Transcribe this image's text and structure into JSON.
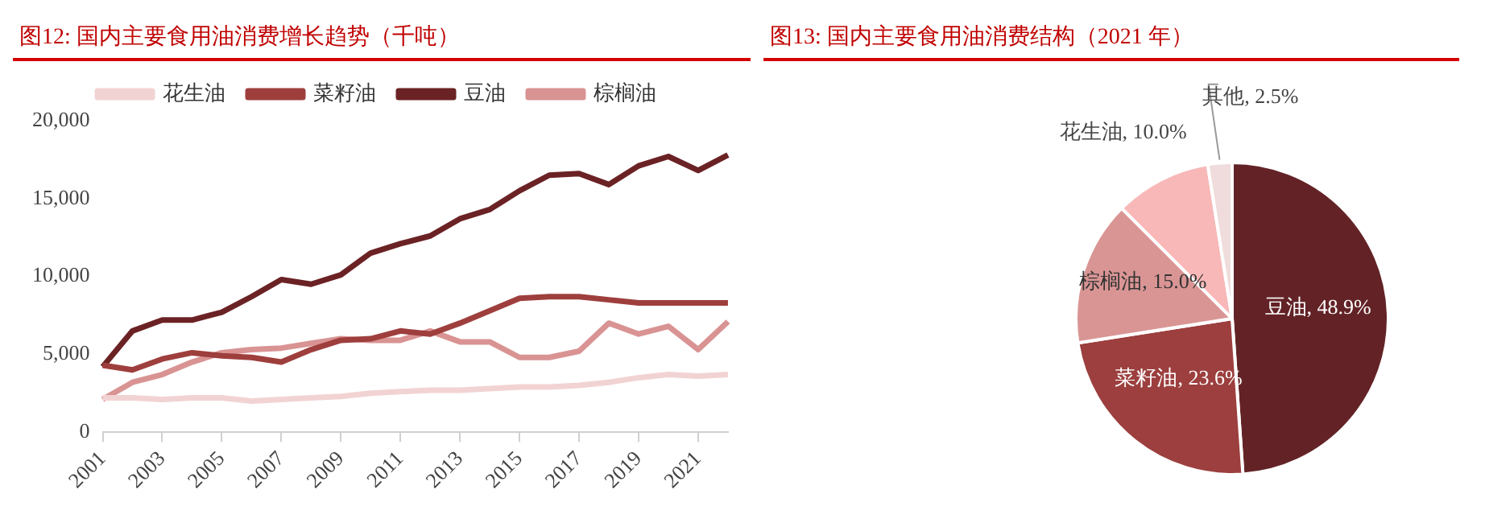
{
  "chart_data": [
    {
      "type": "line",
      "title": "图12:  国内主要食用油消费增长趋势（千吨）",
      "categories": [
        "2001",
        null,
        "2003",
        null,
        "2005",
        null,
        "2007",
        null,
        "2009",
        null,
        "2011",
        null,
        "2013",
        null,
        "2015",
        null,
        "2017",
        null,
        "2019",
        null,
        "2021",
        null
      ],
      "series": [
        {
          "name": "花生油",
          "color": "#f2d3d3",
          "values": [
            2200,
            2200,
            2100,
            2200,
            2200,
            2000,
            2100,
            2200,
            2300,
            2500,
            2600,
            2700,
            2700,
            2800,
            2900,
            2900,
            3000,
            3200,
            3500,
            3700,
            3600,
            3700
          ]
        },
        {
          "name": "菜籽油",
          "color": "#9e3f3d",
          "values": [
            4300,
            4000,
            4700,
            5100,
            4900,
            4800,
            4500,
            5300,
            5900,
            6000,
            6500,
            6300,
            7000,
            7800,
            8600,
            8700,
            8700,
            8500,
            8300,
            8300,
            8300,
            8300
          ]
        },
        {
          "name": "豆油",
          "color": "#6b2224",
          "values": [
            4200,
            6500,
            7200,
            7200,
            7700,
            8700,
            9800,
            9500,
            10100,
            11500,
            12100,
            12600,
            13700,
            14300,
            15500,
            16500,
            16600,
            15900,
            17100,
            17700,
            16800,
            17800
          ]
        },
        {
          "name": "棕榈油",
          "color": "#d99393",
          "values": [
            2100,
            3200,
            3700,
            4500,
            5100,
            5300,
            5400,
            5700,
            6000,
            5900,
            5900,
            6500,
            5800,
            5800,
            4800,
            4800,
            5200,
            7000,
            6300,
            6800,
            5300,
            7100
          ]
        }
      ],
      "ylim": [
        0,
        20000
      ],
      "yticks": [
        0,
        {
          "value": 5000,
          "label": "5,000"
        },
        {
          "value": 10000,
          "label": "10,000"
        },
        {
          "value": 15000,
          "label": "15,000"
        },
        {
          "value": 20000,
          "label": "20,000"
        }
      ],
      "grid": false,
      "legend": "top",
      "line_style": "solid",
      "marker": "none"
    },
    {
      "type": "pie",
      "title": "图13:  国内主要食用油消费结构（2021 年）",
      "categories": [
        "豆油",
        "菜籽油",
        "棕榈油",
        "花生油",
        "其他"
      ],
      "values": [
        48.9,
        23.6,
        15.0,
        10.0,
        2.5
      ],
      "value_labels": [
        "48.9%",
        "23.6%",
        "15.0%",
        "10.0%",
        "2.5%"
      ],
      "colors": [
        "#632326",
        "#9c3f3e",
        "#d99594",
        "#f8b8b8",
        "#f0dcdc"
      ],
      "legend": false
    }
  ]
}
